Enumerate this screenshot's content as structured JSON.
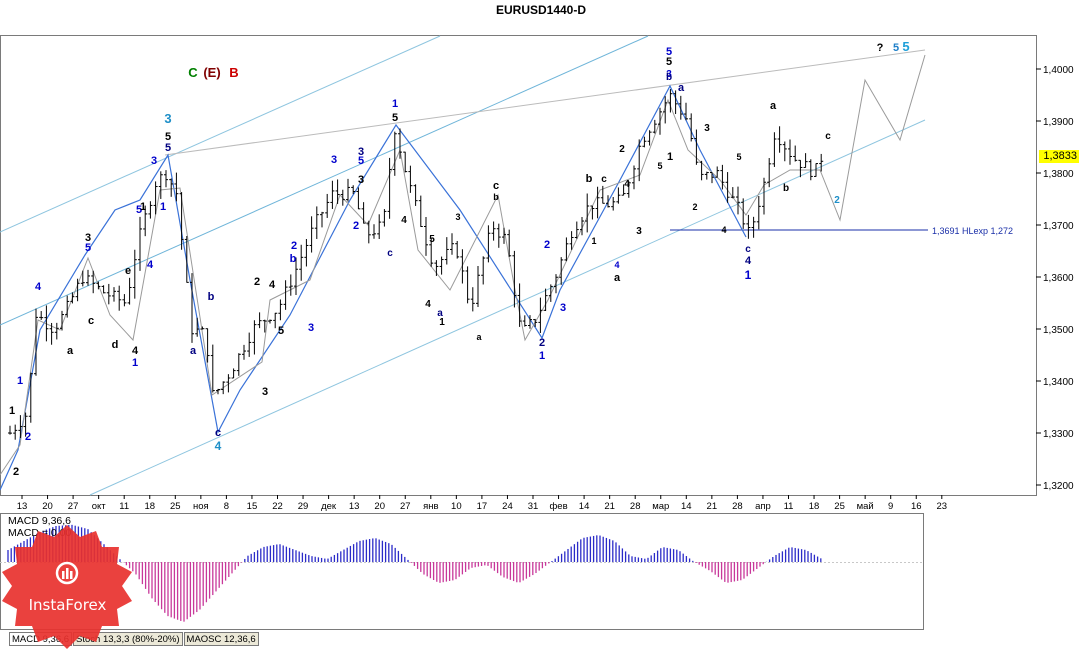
{
  "chart_title": "EURUSD1440-D",
  "current_price_label": "1,3833",
  "price_ticks": [
    "1,4000",
    "1,3900",
    "1,3800",
    "1,3700",
    "1,3600",
    "1,3500",
    "1,3400",
    "1,3300",
    "1,3200"
  ],
  "date_ticks": [
    "13",
    "20",
    "27",
    "окт",
    "11",
    "18",
    "25",
    "ноя",
    "8",
    "15",
    "22",
    "29",
    "дек",
    "13",
    "20",
    "27",
    "янв",
    "10",
    "17",
    "24",
    "31",
    "фев",
    "14",
    "21",
    "28",
    "мар",
    "14",
    "21",
    "28",
    "апр",
    "11",
    "18",
    "25",
    "май",
    "9",
    "16",
    "23"
  ],
  "level_line_label": "1,3691 HLexp 1,272",
  "macd_label_1": "MACD 9,36,6",
  "macd_label_2": "MACD = 0,00",
  "tabs": [
    "MACD 9,36,6",
    "Stoch 13,3,3 (80%-20%)",
    "MAOSC 12,36,6"
  ],
  "logo_text": "InstaForex",
  "wave_labels": [
    {
      "t": "C",
      "c": "#008000"
    },
    {
      "t": "(E)",
      "c": "#800000"
    },
    {
      "t": "B",
      "c": "#cc0000"
    },
    {
      "t": "?",
      "c": "#000000"
    },
    {
      "t": "5",
      "c": "#1e7fc8"
    },
    {
      "t": "5",
      "c": "#1e9fd8"
    },
    {
      "t": "3",
      "c": "#1e8fc8"
    },
    {
      "t": "5",
      "c": "#000000"
    },
    {
      "t": "5",
      "c": "#000080"
    },
    {
      "t": "3",
      "c": "#0000cc"
    },
    {
      "t": "1",
      "c": "#0000cc"
    },
    {
      "t": "5",
      "c": "#000000"
    },
    {
      "t": "3",
      "c": "#000080"
    },
    {
      "t": "5",
      "c": "#0000cc"
    },
    {
      "t": "3",
      "c": "#000000"
    },
    {
      "t": "3",
      "c": "#0000cc"
    },
    {
      "t": "5",
      "c": "#0000cc"
    },
    {
      "t": "b",
      "c": "#000080"
    },
    {
      "t": "a",
      "c": "#000080"
    },
    {
      "t": "c",
      "c": "#000080"
    },
    {
      "t": "4",
      "c": "#1e8fc8"
    },
    {
      "t": "1",
      "c": "#0000cc"
    },
    {
      "t": "2",
      "c": "#0000cc"
    },
    {
      "t": "1",
      "c": "#000000"
    },
    {
      "t": "2",
      "c": "#000000"
    },
    {
      "t": "3",
      "c": "#000000"
    },
    {
      "t": "5",
      "c": "#0000cc"
    },
    {
      "t": "4",
      "c": "#0000cc"
    },
    {
      "t": "a",
      "c": "#000000"
    },
    {
      "t": "c",
      "c": "#000000"
    },
    {
      "t": "d",
      "c": "#000000"
    },
    {
      "t": "e",
      "c": "#000000"
    },
    {
      "t": "4",
      "c": "#000000"
    },
    {
      "t": "1",
      "c": "#0000cc"
    },
    {
      "t": "2",
      "c": "#0000cc"
    },
    {
      "t": "3",
      "c": "#0000cc"
    },
    {
      "t": "4",
      "c": "#0000cc"
    },
    {
      "t": "2",
      "c": "#0000cc"
    },
    {
      "t": "1",
      "c": "#0000cc"
    },
    {
      "t": "1",
      "c": "#000000"
    },
    {
      "t": "2",
      "c": "#000000"
    },
    {
      "t": "3",
      "c": "#000000"
    },
    {
      "t": "4",
      "c": "#000000"
    },
    {
      "t": "5",
      "c": "#000000"
    },
    {
      "t": "b",
      "c": "#0000cc"
    },
    {
      "t": "c",
      "c": "#000000"
    },
    {
      "t": "b",
      "c": "#000000"
    },
    {
      "t": "a",
      "c": "#000000"
    },
    {
      "t": "3",
      "c": "#000000"
    },
    {
      "t": "4",
      "c": "#000000"
    },
    {
      "t": "5",
      "c": "#000000"
    },
    {
      "t": "a",
      "c": "#000080"
    },
    {
      "t": "1",
      "c": "#000000"
    },
    {
      "t": "4",
      "c": "#000000"
    },
    {
      "t": "c",
      "c": "#000080"
    },
    {
      "t": "2",
      "c": "#000080"
    },
    {
      "t": "1",
      "c": "#0000cc"
    },
    {
      "t": "2",
      "c": "#0000cc"
    },
    {
      "t": "3",
      "c": "#0000cc"
    },
    {
      "t": "b",
      "c": "#000000"
    },
    {
      "t": "c",
      "c": "#000000"
    },
    {
      "t": "4",
      "c": "#0000cc"
    },
    {
      "t": "a",
      "c": "#000000"
    },
    {
      "t": "1",
      "c": "#000000"
    },
    {
      "t": "2",
      "c": "#000000"
    },
    {
      "t": "3",
      "c": "#000000"
    },
    {
      "t": "4",
      "c": "#000000"
    },
    {
      "t": "5",
      "c": "#000000"
    },
    {
      "t": "3",
      "c": "#0000cc"
    },
    {
      "t": "5",
      "c": "#0000cc"
    },
    {
      "t": "5",
      "c": "#000000"
    },
    {
      "t": "b",
      "c": "#000080"
    },
    {
      "t": "a",
      "c": "#000080"
    },
    {
      "t": "1",
      "c": "#000000"
    },
    {
      "t": "2",
      "c": "#000000"
    },
    {
      "t": "3",
      "c": "#000000"
    },
    {
      "t": "4",
      "c": "#000000"
    },
    {
      "t": "5",
      "c": "#000000"
    },
    {
      "t": "c",
      "c": "#000080"
    },
    {
      "t": "4",
      "c": "#000080"
    },
    {
      "t": "1",
      "c": "#0000cc"
    },
    {
      "t": "a",
      "c": "#000000"
    },
    {
      "t": "b",
      "c": "#000000"
    },
    {
      "t": "c",
      "c": "#000000"
    },
    {
      "t": "2",
      "c": "#1e8fc8"
    }
  ],
  "chart_data": {
    "type": "ohlc-bar",
    "symbol": "EURUSD",
    "timeframe": "D1",
    "ylim": [
      1.317,
      1.407
    ],
    "date_range": [
      "2013-09-12",
      "2014-04-24"
    ],
    "current_price": 1.3833,
    "horizontal_level": {
      "value": 1.3691,
      "label": "1,3691 HLexp 1,272"
    },
    "close_path": [
      [
        "2013-09-12",
        1.33
      ],
      [
        "2013-09-17",
        1.334
      ],
      [
        "2013-09-19",
        1.353
      ],
      [
        "2013-09-24",
        1.35
      ],
      [
        "2013-09-27",
        1.353
      ],
      [
        "2013-10-02",
        1.36
      ],
      [
        "2013-10-08",
        1.357
      ],
      [
        "2013-10-14",
        1.355
      ],
      [
        "2013-10-17",
        1.366
      ],
      [
        "2013-10-22",
        1.378
      ],
      [
        "2013-10-25",
        1.38
      ],
      [
        "2013-10-28",
        1.376
      ],
      [
        "2013-11-01",
        1.35
      ],
      [
        "2013-11-05",
        1.349
      ],
      [
        "2013-11-07",
        1.337
      ],
      [
        "2013-11-12",
        1.342
      ],
      [
        "2013-11-18",
        1.35
      ],
      [
        "2013-11-25",
        1.354
      ],
      [
        "2013-11-29",
        1.36
      ],
      [
        "2013-12-05",
        1.37
      ],
      [
        "2013-12-10",
        1.376
      ],
      [
        "2013-12-16",
        1.376
      ],
      [
        "2013-12-19",
        1.368
      ],
      [
        "2013-12-24",
        1.37
      ],
      [
        "2013-12-27",
        1.389
      ],
      [
        "2013-12-31",
        1.378
      ],
      [
        "2014-01-07",
        1.362
      ],
      [
        "2014-01-13",
        1.366
      ],
      [
        "2014-01-17",
        1.354
      ],
      [
        "2014-01-23",
        1.37
      ],
      [
        "2014-01-27",
        1.367
      ],
      [
        "2014-01-31",
        1.349
      ],
      [
        "2014-02-04",
        1.352
      ],
      [
        "2014-02-10",
        1.361
      ],
      [
        "2014-02-14",
        1.369
      ],
      [
        "2014-02-19",
        1.374
      ],
      [
        "2014-02-25",
        1.374
      ],
      [
        "2014-02-28",
        1.375
      ],
      [
        "2014-03-05",
        1.386
      ],
      [
        "2014-03-13",
        1.395
      ],
      [
        "2014-03-18",
        1.39
      ],
      [
        "2014-03-21",
        1.379
      ],
      [
        "2014-03-26",
        1.38
      ],
      [
        "2014-04-01",
        1.373
      ],
      [
        "2014-04-04",
        1.368
      ],
      [
        "2014-04-08",
        1.378
      ],
      [
        "2014-04-11",
        1.388
      ],
      [
        "2014-04-16",
        1.383
      ],
      [
        "2014-04-22",
        1.38
      ],
      [
        "2014-04-24",
        1.3833
      ]
    ],
    "macd_histogram": [
      0.2,
      0.35,
      0.5,
      0.6,
      0.62,
      0.55,
      0.3,
      0.05,
      -0.2,
      -0.6,
      -0.9,
      -1.0,
      -0.8,
      -0.5,
      -0.2,
      0.1,
      0.25,
      0.3,
      0.2,
      0.1,
      0.05,
      0.2,
      0.35,
      0.4,
      0.3,
      0.05,
      -0.2,
      -0.35,
      -0.3,
      -0.1,
      -0.05,
      -0.25,
      -0.35,
      -0.2,
      0.0,
      0.2,
      0.4,
      0.45,
      0.35,
      0.1,
      0.05,
      0.25,
      0.2,
      0.0,
      -0.15,
      -0.35,
      -0.3,
      -0.1,
      0.1,
      0.25,
      0.2,
      0.05
    ]
  }
}
